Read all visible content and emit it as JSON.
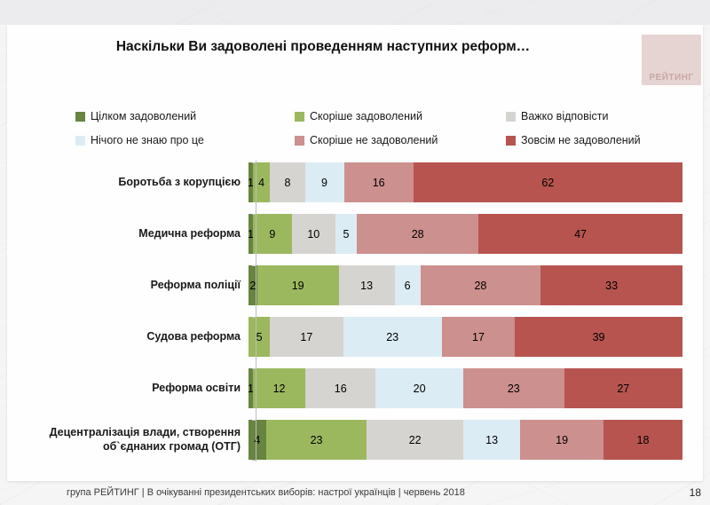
{
  "slide": {
    "title": "Наскільки Ви задоволені проведенням наступних реформ…",
    "logo_text": "РЕЙТИНГ",
    "footer": "група РЕЙТИНГ  | В очікуванні президентських виборів: настрої українців |  червень 2018",
    "page_number": "18"
  },
  "colors": {
    "fully_satisfied": "#678440",
    "rather_satisfied": "#9cb85f",
    "hard_to_answer": "#d6d4d1",
    "know_nothing": "#dcecf4",
    "rather_not_satisfied": "#cc908e",
    "not_satisfied_at_all": "#b75450",
    "logo_bg": "#e6d4d2",
    "axis": "#bdbdbd"
  },
  "chart_data": {
    "type": "bar",
    "orientation": "horizontal",
    "stacked": true,
    "normalized_to_100": true,
    "title": "Наскільки Ви задоволені проведенням наступних реформ…",
    "xlabel": "",
    "ylabel": "",
    "xlim": [
      0,
      100
    ],
    "grid": false,
    "legend_position": "top",
    "value_labels": "inside",
    "categories": [
      "Боротьба з корупцією",
      "Медична реформа",
      "Реформа поліції",
      "Судова реформа",
      "Реформа освіти",
      "Децентралізація влади, створення об`єднаних громад (ОТГ)"
    ],
    "series": [
      {
        "name": "Цілком задоволений",
        "color": "#678440",
        "values": [
          1,
          1,
          2,
          0,
          1,
          4
        ]
      },
      {
        "name": "Скоріше задоволений",
        "color": "#9cb85f",
        "values": [
          4,
          9,
          19,
          5,
          12,
          23
        ]
      },
      {
        "name": "Важко відповісти",
        "color": "#d6d4d1",
        "values": [
          8,
          10,
          13,
          17,
          16,
          22
        ]
      },
      {
        "name": "Нічого не знаю про це",
        "color": "#dcecf4",
        "values": [
          9,
          5,
          6,
          23,
          20,
          13
        ]
      },
      {
        "name": "Скоріше не задоволений",
        "color": "#cc908e",
        "values": [
          16,
          28,
          28,
          17,
          23,
          19
        ]
      },
      {
        "name": "Зовсім не задоволений",
        "color": "#b75450",
        "values": [
          62,
          47,
          33,
          39,
          27,
          18
        ]
      }
    ]
  }
}
